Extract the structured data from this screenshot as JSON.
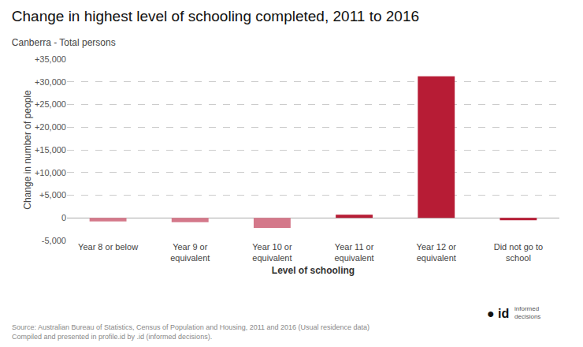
{
  "chart_data": {
    "type": "bar",
    "title": "Change in highest level of schooling completed, 2011 to 2016",
    "subtitle": "Canberra - Total persons",
    "xlabel": "Level of schooling",
    "ylabel": "Change in number of people",
    "categories": [
      "Year 8 or below",
      "Year 9 or\nequivalent",
      "Year 10 or\nequivalent",
      "Year 11 or\nequivalent",
      "Year 12 or\nequivalent",
      "Did not go to\nschool"
    ],
    "values": [
      -800,
      -950,
      -2200,
      700,
      31200,
      -500
    ],
    "colors": [
      "#d4788a",
      "#d4788a",
      "#d4788a",
      "#b71c35",
      "#b71c35",
      "#b71c35"
    ],
    "ylim": [
      -5000,
      35000
    ],
    "yticks": [
      {
        "value": -5000,
        "label": "-5,000"
      },
      0,
      {
        "value": 5000,
        "label": "+5,000"
      },
      {
        "value": 10000,
        "label": "+10,000"
      },
      {
        "value": 15000,
        "label": "+15,000"
      },
      {
        "value": 20000,
        "label": "+20,000"
      },
      {
        "value": 25000,
        "label": "+25,000"
      },
      {
        "value": 30000,
        "label": "+30,000"
      },
      {
        "value": 35000,
        "label": "+35,000"
      }
    ],
    "grid": true,
    "annotations": [
      "Source: Australian Bureau of Statistics, Census of Population and Housing, 2011 and 2016 (Usual residence data)\nCompiled and presented in profile.id by .id (informed decisions).",
      "●",
      "id",
      "informed",
      "decisions"
    ]
  }
}
